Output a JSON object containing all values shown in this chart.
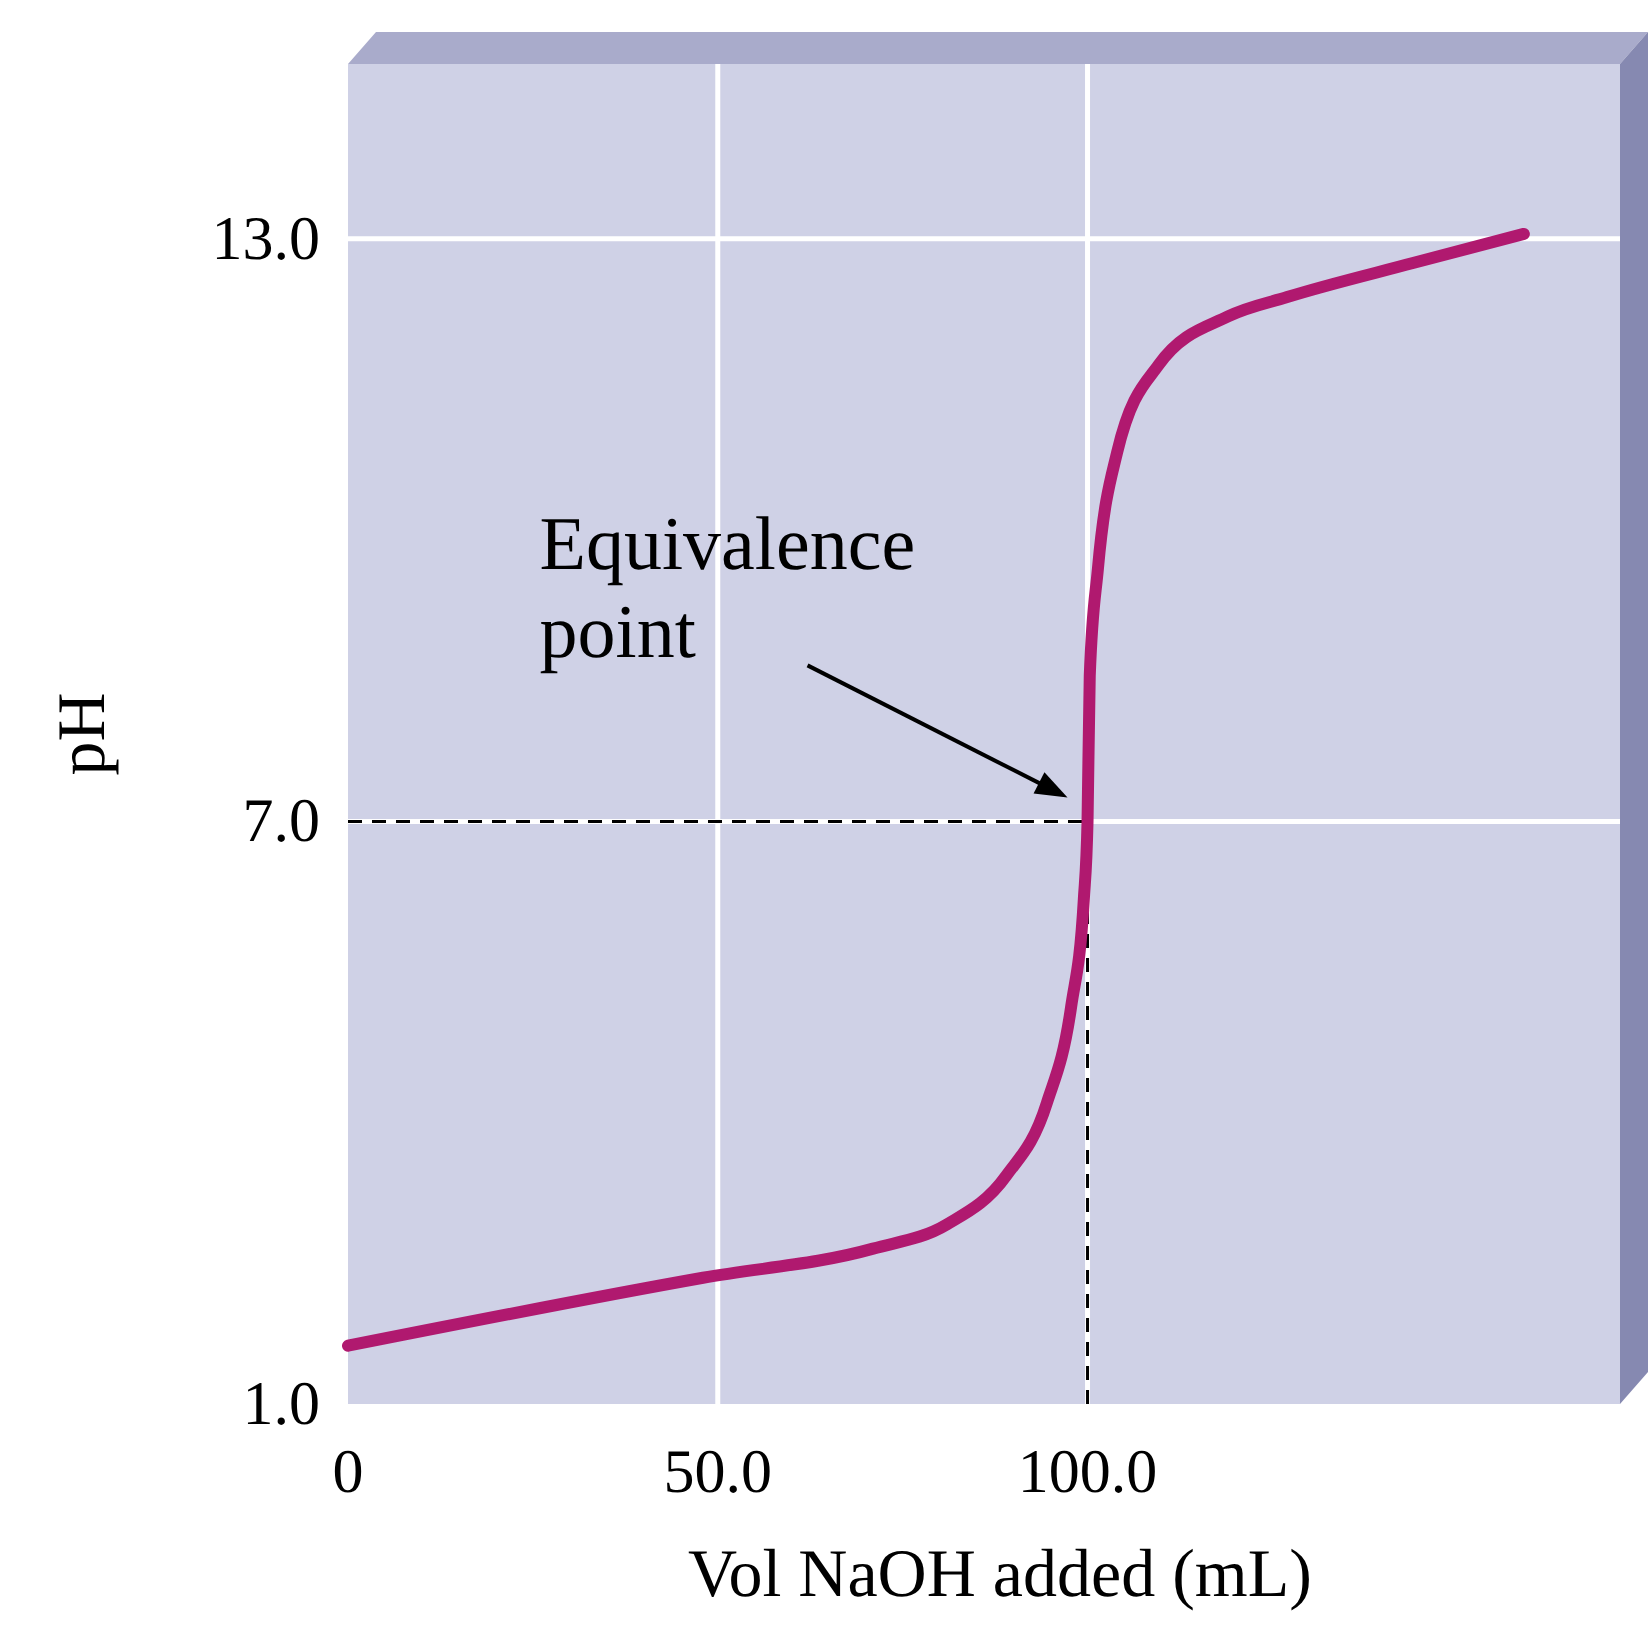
{
  "chart_data": {
    "type": "line",
    "xlabel": "Vol NaOH added (mL)",
    "ylabel": "pH",
    "x": [
      0,
      48,
      71,
      81,
      89,
      94.5,
      97.8,
      99.5,
      100,
      100.3,
      101.4,
      104,
      109.6,
      119,
      127,
      144,
      159
    ],
    "series": [
      {
        "color": "#b0196f",
        "values": [
          1.6,
          2.3,
          2.6,
          2.85,
          3.35,
          4.1,
          5.1,
          6.2,
          7,
          8.5,
          9.6,
          10.8,
          11.7,
          12.2,
          12.4,
          12.75,
          13.05
        ]
      }
    ],
    "xlim": [
      0,
      172
    ],
    "ylim": [
      1,
      14.8
    ],
    "xticks": [
      0,
      {
        "value": 50,
        "label": "50.0"
      },
      {
        "value": 100,
        "label": "100.0"
      }
    ],
    "yticks": [
      {
        "value": 1,
        "label": "1.0"
      },
      {
        "value": 7,
        "label": "7.0"
      },
      {
        "value": 13,
        "label": "13.0"
      }
    ],
    "grid": true,
    "line_style": "solid",
    "marker": "none",
    "ref_lines": [
      {
        "axis": "y",
        "value": 7,
        "line_style": "dashed",
        "color": "#000000"
      },
      {
        "axis": "x",
        "value": 100,
        "line_style": "dashed",
        "color": "#000000"
      }
    ],
    "annotations": [
      {
        "text": "Equivalence point",
        "x": 100,
        "y": 7
      }
    ]
  }
}
